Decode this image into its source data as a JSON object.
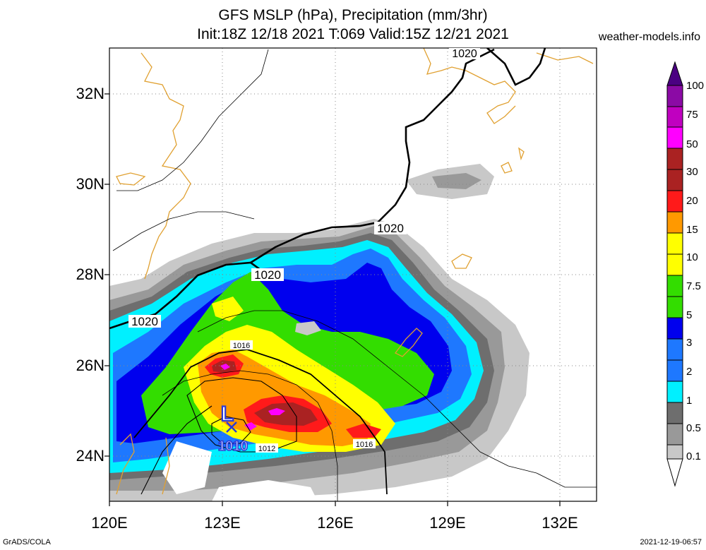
{
  "title_line1": "GFS MSLP (hPa), Precipitation (mm/3hr)",
  "title_line2": "Init:18Z 12/18 2021 T:069 Valid:15Z 12/21 2021",
  "site": "weather-models.info",
  "credit": "GrADS/COLA",
  "timestamp": "2021-12-19-06:57",
  "lat_labels": [
    "32N",
    "30N",
    "28N",
    "26N",
    "24N"
  ],
  "lon_labels": [
    "120E",
    "123E",
    "126E",
    "129E",
    "132E"
  ],
  "isobar_labels": {
    "top": "1020",
    "mid_east": "1020",
    "mid": "1020",
    "west": "1020",
    "inner": "1016",
    "south": "1016",
    "near_low": "1012"
  },
  "low": {
    "symbol": "L",
    "pressure": "1010"
  },
  "colorbar": {
    "labels": [
      "100",
      "75",
      "50",
      "30",
      "20",
      "15",
      "10",
      "7.5",
      "5",
      "3",
      "2",
      "1",
      "0.5",
      "0.1"
    ],
    "colors": [
      "#8b0aa5",
      "#c000c0",
      "#ff00ff",
      "#aa2222",
      "#ff1a1a",
      "#ff9900",
      "#ffff00",
      "#33dd00",
      "#0000ee",
      "#1e78ff",
      "#00f0ff",
      "#6e6e6e",
      "#999999",
      "#c8c8c8"
    ]
  }
}
